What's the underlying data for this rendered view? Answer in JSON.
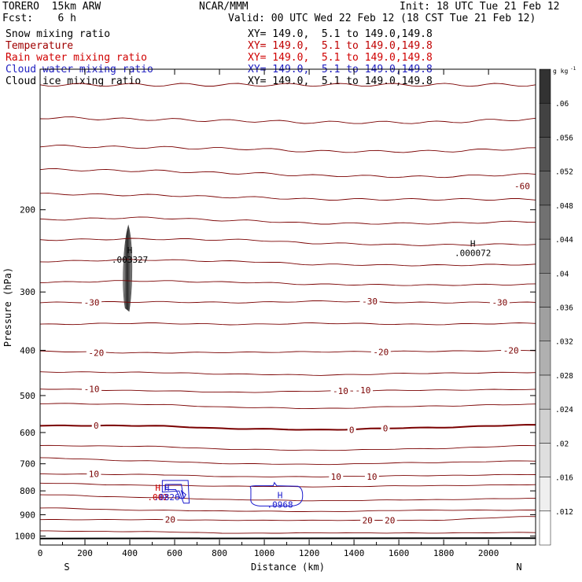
{
  "header": {
    "model": "TORERO  15km ARW",
    "center": "NCAR/MMM",
    "init": "Init: 18 UTC Tue 21 Feb 12",
    "fcst": "Fcst:    6 h",
    "valid": "Valid: 00 UTC Wed 22 Feb 12 (18 CST Tue 21 Feb 12)"
  },
  "fields": [
    {
      "name": "Snow mixing ratio",
      "xy": "XY= 149.0,  5.1 to 149.0,149.8",
      "color": "#000000",
      "xy_color": "#000000"
    },
    {
      "name": "Temperature",
      "xy": "XY= 149.0,  5.1 to 149.0,149.8",
      "color": "#a00000",
      "xy_color": "#c00000"
    },
    {
      "name": "Rain water mixing ratio",
      "xy": "XY= 149.0,  5.1 to 149.0,149.8",
      "color": "#d00000",
      "xy_color": "#d00000"
    },
    {
      "name": "Cloud water mixing ratio",
      "xy": "XY= 149.0,  5.1 to 149.0,149.8",
      "color": "#2020c0",
      "xy_color": "#2020c0"
    },
    {
      "name": "Cloud ice mixing ratio",
      "xy": "XY= 149.0,  5.1 to 149.0,149.8",
      "color": "#000000",
      "xy_color": "#000000"
    }
  ],
  "colors": {
    "temperature": "#7a0000",
    "cloud_water": "#1a1acd",
    "rain": "#cc0000",
    "text": "#000000"
  },
  "chart_data": {
    "type": "contour cross-section",
    "xlabel": "Distance (km)",
    "ylabel": "Pressure (hPa)",
    "x_ticks": [
      0,
      200,
      400,
      600,
      800,
      1000,
      1200,
      1400,
      1600,
      1800,
      2000
    ],
    "y_ticks": [
      200,
      300,
      400,
      500,
      600,
      700,
      800,
      900,
      1000
    ],
    "xlim": [
      0,
      2210
    ],
    "ylim": [
      1045,
      100
    ],
    "y_scale": "log",
    "left_end_label": "S",
    "right_end_label": "N",
    "colorbar": {
      "unit": "g kg",
      "unit_exp": "-1",
      "levels": [
        ".012",
        ".016",
        ".02",
        ".024",
        ".028",
        ".032",
        ".036",
        ".04",
        ".044",
        ".048",
        ".052",
        ".056",
        ".06"
      ]
    },
    "temperature_contour_labels": [
      {
        "text": "-60",
        "x": 2150,
        "p": 178
      },
      {
        "text": "-30",
        "x": 230,
        "p": 316
      },
      {
        "text": "-30",
        "x": 1470,
        "p": 314
      },
      {
        "text": "-30",
        "x": 2050,
        "p": 316
      },
      {
        "text": "-20",
        "x": 250,
        "p": 405
      },
      {
        "text": "-20",
        "x": 1520,
        "p": 403
      },
      {
        "text": "-20",
        "x": 2100,
        "p": 400
      },
      {
        "text": "-10",
        "x": 230,
        "p": 484
      },
      {
        "text": "-10",
        "x": 1340,
        "p": 489
      },
      {
        "text": "-10",
        "x": 1440,
        "p": 487
      },
      {
        "text": "0",
        "x": 250,
        "p": 580
      },
      {
        "text": "0",
        "x": 1390,
        "p": 592
      },
      {
        "text": "0",
        "x": 1540,
        "p": 587
      },
      {
        "text": "10",
        "x": 240,
        "p": 736
      },
      {
        "text": "10",
        "x": 1320,
        "p": 746
      },
      {
        "text": "10",
        "x": 1480,
        "p": 746
      },
      {
        "text": "20",
        "x": 580,
        "p": 922
      },
      {
        "text": "20",
        "x": 1460,
        "p": 925
      },
      {
        "text": "20",
        "x": 1560,
        "p": 925
      }
    ],
    "maxima": [
      {
        "mark": "H",
        "value": ".003327",
        "x": 400,
        "p": 248,
        "color": "#000000"
      },
      {
        "mark": "H",
        "value": ".000072",
        "x": 1930,
        "p": 240,
        "color": "#000000"
      },
      {
        "mark": "H",
        "value": ".002",
        "x": 525,
        "p": 800,
        "color": "#cc0000"
      },
      {
        "mark": "H",
        "value": ".0826",
        "x": 565,
        "p": 800,
        "color": "#1a1acd"
      },
      {
        "mark": "H",
        "value": ".0968",
        "x": 1070,
        "p": 830,
        "color": "#1a1acd"
      }
    ]
  }
}
